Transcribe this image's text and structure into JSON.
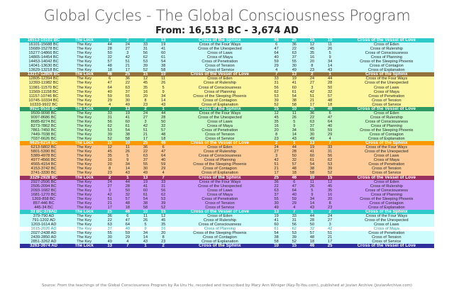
{
  "header": {
    "title": "Global Cycles - The Global Consciousness Program",
    "subtitle": "From: 16,513 BC - 3,674 AD"
  },
  "colors": {
    "teal_header": "#2ec9c9",
    "teal_body": "#ccfcfc",
    "brown_header": "#94703a",
    "yellow_body": "#fdf7a0",
    "green_header": "#2c9864",
    "green_body": "#c8fcc8",
    "orange_header": "#fb9800",
    "orange_body": "#fdcc98",
    "maroon_header": "#983060",
    "purple_body": "#cc98fc",
    "navy_header": "#30309c"
  },
  "sections": [
    {
      "header_color": "#2ec9c9",
      "body_color": "#ccfcfc",
      "header": [
        "16513-16102 BC",
        "The Lock",
        "1",
        "2",
        "7",
        "13",
        "Cross of the Sphinx",
        "46",
        "25",
        "15",
        "10",
        "Cross of the Vessel of Love"
      ],
      "rows": [
        [
          "16101-15688 BC",
          "The Key",
          "44",
          "24",
          "33",
          "19",
          "Cross of the Four Ways",
          "6",
          "36",
          "12",
          "11",
          "Cross of Eden"
        ],
        [
          "15689-15278 BC",
          "The Key",
          "28",
          "27",
          "31",
          "41",
          "Cross of the Unexpected",
          "47",
          "22",
          "45",
          "26",
          "Cross of Rulership"
        ],
        [
          "15277-14866 BC",
          "The Key",
          "50",
          "3",
          "56",
          "60",
          "Cross of Laws",
          "64",
          "63",
          "35",
          "5",
          "Cross of Consciousness"
        ],
        [
          "14865-14454 BC",
          "The Key",
          "32",
          "42",
          "62",
          "61",
          "Cross of Maya",
          "40",
          "37",
          "16",
          "9",
          "Cross of Planning"
        ],
        [
          "14453-14042 BC",
          "The Key",
          "57",
          "51",
          "53",
          "54",
          "Cross of Penetration",
          "59",
          "55",
          "20",
          "34",
          "Cross of the Sleeping Phoenix"
        ],
        [
          "14041-13630 BC",
          "The Key",
          "48",
          "21",
          "39",
          "38",
          "Cross of Tension",
          "29",
          "30",
          "8",
          "14",
          "Cross of Contagion"
        ],
        [
          "13629-13218 BC",
          "The Key",
          "18",
          "17",
          "52",
          "58",
          "Cross of Service",
          "4",
          "49",
          "23",
          "43",
          "Cross of Explanation"
        ]
      ]
    },
    {
      "header_color": "#94703a",
      "body_color": "#fdf7a0",
      "header": [
        "13217-12806 BC",
        "The Lock",
        "46",
        "25",
        "15",
        "10",
        "Cross of the Vessel of Love",
        "7",
        "13",
        "2",
        "1",
        "Cross of the Sphinx"
      ],
      "rows": [
        [
          "12805-12394 BC",
          "The Key",
          "6",
          "36",
          "12",
          "11",
          "Cross of Eden",
          "33",
          "19",
          "24",
          "44",
          "Cross of the Four Ways"
        ],
        [
          "12393-11982 BC",
          "The Key",
          "47",
          "22",
          "45",
          "26",
          "Cross of Rulership",
          "31",
          "41",
          "27",
          "28",
          "Cross of the Unexpected"
        ],
        [
          "11981-11570 BC",
          "The Key",
          "64",
          "63",
          "35",
          "5",
          "Cross of Consciousness",
          "56",
          "60",
          "3",
          "50",
          "Cross of Laws"
        ],
        [
          "11569-11158 BC",
          "The Key",
          "40",
          "37",
          "16",
          "9",
          "Cross of Planning",
          "62",
          "61",
          "42",
          "32",
          "Cross of Maya"
        ],
        [
          "11157-10746 BC",
          "The Key",
          "59",
          "55",
          "20",
          "34",
          "Cross of the Sleeping Phoenix",
          "53",
          "54",
          "51",
          "57",
          "Cross of Penetration"
        ],
        [
          "10745-10334 BC",
          "The Key",
          "29",
          "30",
          "8",
          "14",
          "Cross of Contagion",
          "39",
          "38",
          "21",
          "48",
          "Cross of Tension"
        ],
        [
          "10333-9922 BC",
          "The Key",
          "4",
          "49",
          "23",
          "43",
          "Cross of Explanation",
          "52",
          "58",
          "17",
          "18",
          "Cross of Service"
        ]
      ]
    },
    {
      "header_color": "#2c9864",
      "body_color": "#c8fcc8",
      "header": [
        "9921-9510 BC",
        "The Lock",
        "7",
        "13",
        "2",
        "1",
        "Cross of the Sphinx",
        "15",
        "10",
        "25",
        "46",
        "Cross of the Vessel of Love"
      ],
      "rows": [
        [
          "9509-9098 BC",
          "The Key",
          "33",
          "19",
          "24",
          "44",
          "Cross of the Four Ways",
          "12",
          "11",
          "36",
          "6",
          "Cross of Eden"
        ],
        [
          "9097-8686 BC",
          "The Key",
          "31",
          "41",
          "27",
          "28",
          "Cross of the Unexpected",
          "45",
          "26",
          "22",
          "47",
          "Cross of Rulership"
        ],
        [
          "8685-8274 BC",
          "The Key",
          "56",
          "60",
          "3",
          "50",
          "Cross of Laws",
          "35",
          "5",
          "63",
          "64",
          "Cross of Consciousness"
        ],
        [
          "8273-7862 BC",
          "The Key",
          "62",
          "61",
          "42",
          "32",
          "Cross of Maya",
          "16",
          "9",
          "37",
          "40",
          "Cross of Planning"
        ],
        [
          "7861-7450 BC",
          "The Key",
          "53",
          "54",
          "51",
          "57",
          "Cross of Penetration",
          "20",
          "34",
          "55",
          "59",
          "Cross of the Sleeping Phoenix"
        ],
        [
          "7449-7038 BC",
          "The Key",
          "39",
          "38",
          "21",
          "48",
          "Cross of Tension",
          "8",
          "14",
          "30",
          "29",
          "Cross of Contagion"
        ],
        [
          "7037-6626 BC",
          "The Key",
          "52",
          "58",
          "17",
          "18",
          "Cross of Service",
          "23",
          "43",
          "49",
          "4",
          "Cross of Explanation"
        ]
      ]
    },
    {
      "header_color": "#fb9800",
      "body_color": "#fdcc98",
      "header": [
        "6625-6214 BC",
        "The Lock",
        "15",
        "10",
        "25",
        "46",
        "Cross of the Vessel of Love",
        "2",
        "1",
        "13",
        "7",
        "Cross of the Sphinx"
      ],
      "rows": [
        [
          "6213-5802 BC",
          "The Key",
          "12",
          "11",
          "36",
          "6",
          "Cross of Eden",
          "24",
          "44",
          "19",
          "33",
          "Cross of the Four Ways"
        ],
        [
          "5801-5390 BC",
          "The Key",
          "45",
          "26",
          "22",
          "47",
          "Cross of Rulership",
          "27",
          "28",
          "41",
          "31",
          "Cross of the Unexpected"
        ],
        [
          "5389-4978 BC",
          "The Key",
          "35",
          "5",
          "63",
          "64",
          "Cross of Consciousness",
          "3",
          "50",
          "60",
          "56",
          "Cross of Laws"
        ],
        [
          "4977-4566 BC",
          "The Key",
          "16",
          "9",
          "37",
          "40",
          "Cross of Planning",
          "42",
          "32",
          "61",
          "62",
          "Cross of Maya"
        ],
        [
          "4565-4154 BC",
          "The Key",
          "20",
          "34",
          "55",
          "59",
          "Cross of the Sleeping Phoenix",
          "51",
          "57",
          "54",
          "53",
          "Cross of Penetration"
        ],
        [
          "4153-3742 BC",
          "The Key",
          "8",
          "14",
          "30",
          "29",
          "Cross of Contagion",
          "21",
          "48",
          "38",
          "39",
          "Cross of Tension"
        ],
        [
          "3741-3330 BC",
          "The Key",
          "23",
          "43",
          "49",
          "4",
          "Cross of Explanation",
          "17",
          "18",
          "58",
          "52",
          "Cross of Service"
        ]
      ]
    },
    {
      "header_color": "#983060",
      "body_color": "#cc98fc",
      "header": [
        "3329-2928 BC",
        "The Lock",
        "2",
        "1",
        "13",
        "7",
        "Cross of the Sphinx",
        "25",
        "46",
        "10",
        "15",
        "Cross of the Vessel of Love"
      ],
      "rows": [
        [
          "2927-2506 BC",
          "The Key",
          "24",
          "44",
          "19",
          "33",
          "Cross of the Four Ways",
          "36",
          "6",
          "11",
          "12",
          "Cross of Eden"
        ],
        [
          "2505-2094 BC",
          "The Key",
          "27",
          "28",
          "41",
          "31",
          "Cross of the Unexpected",
          "22",
          "47",
          "26",
          "45",
          "Cross of Rulership"
        ],
        [
          "2093-1682 BC",
          "The Key",
          "3",
          "50",
          "60",
          "56",
          "Cross of Laws",
          "63",
          "64",
          "5",
          "35",
          "Cross of Consciousness"
        ],
        [
          "1681-1270 BC",
          "The Key",
          "42",
          "32",
          "61",
          "62",
          "Cross of Maya",
          "37",
          "40",
          "9",
          "16",
          "Cross of Planning"
        ],
        [
          "1269-858 BC",
          "The Key",
          "51",
          "57",
          "54",
          "53",
          "Cross of Penetration",
          "55",
          "59",
          "34",
          "20",
          "Cross of the Sleeping Phoenix"
        ],
        [
          "857-446 BC",
          "The Key",
          "21",
          "48",
          "38",
          "39",
          "Cross of Tension",
          "30",
          "29",
          "14",
          "8",
          "Cross of Contagion"
        ],
        [
          "445-34 BC",
          "The Key",
          "17",
          "18",
          "58",
          "52",
          "Cross of Service",
          "49",
          "4",
          "43",
          "23",
          "Cross of Explanation"
        ]
      ]
    },
    {
      "header_color": "#2ec9c9",
      "body_color": "#ccfcfc",
      "header": [
        "33 BC-378AD",
        "The Lock",
        "25",
        "46",
        "10",
        "15",
        "Cross of the Vessel of Love",
        "13",
        "7",
        "1",
        "2",
        "Cross of the Sphinx"
      ],
      "rows": [
        [
          "379-790 AD",
          "The Key",
          "36",
          "6",
          "11",
          "12",
          "Cross of Eden",
          "19",
          "33",
          "44",
          "24",
          "Cross of the Four Ways"
        ],
        [
          "791-1202 AD",
          "The Key",
          "22",
          "47",
          "26",
          "45",
          "Cross of Rulership",
          "41",
          "31",
          "28",
          "27",
          "Cross of the Unexpected"
        ],
        [
          "1203-1614 AD",
          "The Key",
          "63",
          "64",
          "5",
          "35",
          "Cross of Consciousness",
          "60",
          "56",
          "50",
          "3",
          "Cross of Laws"
        ],
        [
          "1615-2026 AD",
          "The Key",
          "37",
          "40",
          "9",
          "16",
          "Cross of Planning",
          "61",
          "62",
          "32",
          "42",
          "Cross of Maya"
        ],
        [
          "2027-2438 AD",
          "The Key",
          "55",
          "59",
          "34",
          "20",
          "Cross of the Sleeping Phoenix",
          "54",
          "53",
          "57",
          "51",
          "Cross of Penetration"
        ],
        [
          "2439-2850 AD",
          "The Key",
          "30",
          "29",
          "14",
          "8",
          "Cross of Contagion",
          "38",
          "39",
          "48",
          "21",
          "Cross of Tension"
        ],
        [
          "2851-3262 AD",
          "The Key",
          "49",
          "4",
          "43",
          "23",
          "Cross of Explanation",
          "58",
          "52",
          "18",
          "17",
          "Cross of Service"
        ]
      ],
      "highlight_row_index": 3
    }
  ],
  "final_header": {
    "header_color": "#30309c",
    "cells": [
      "3263-3674 AD",
      "The Lock",
      "13",
      "7",
      "1",
      "2",
      "Cross of the Sphinx",
      "10",
      "15",
      "46",
      "25",
      "Cross of the Vessel of Love"
    ]
  },
  "footer": {
    "source": "Source: From the teachings of the Global Consciousness Program by Ra Uru Hu, recorded and transcribed by Mary Ann Winiger (Key-To-You.com), published at Jovian Archive (JovianArchive.com)"
  }
}
